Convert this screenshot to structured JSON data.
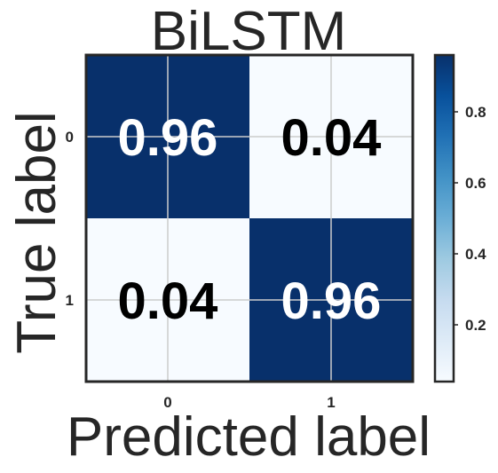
{
  "chart_data": {
    "type": "heatmap",
    "title": "BiLSTM",
    "xlabel": "Predicted label",
    "ylabel": "True label",
    "x_categories": [
      "0",
      "1"
    ],
    "y_categories": [
      "0",
      "1"
    ],
    "values": [
      [
        0.96,
        0.04
      ],
      [
        0.04,
        0.96
      ]
    ],
    "cell_labels": [
      [
        "0.96",
        "0.04"
      ],
      [
        "0.04",
        "0.96"
      ]
    ],
    "colorbar": {
      "range": [
        0.04,
        0.96
      ],
      "ticks": [
        0.2,
        0.4,
        0.6,
        0.8
      ],
      "tick_labels": [
        "0.2",
        "0.4",
        "0.6",
        "0.8"
      ],
      "colormap": "Blues"
    },
    "colors": {
      "low": "#f7fbff",
      "high": "#08306b",
      "text_on_dark": "#ffffff",
      "text_on_light": "#000000",
      "grid": "#cccccc",
      "frame": "#262626"
    },
    "grid": true
  }
}
